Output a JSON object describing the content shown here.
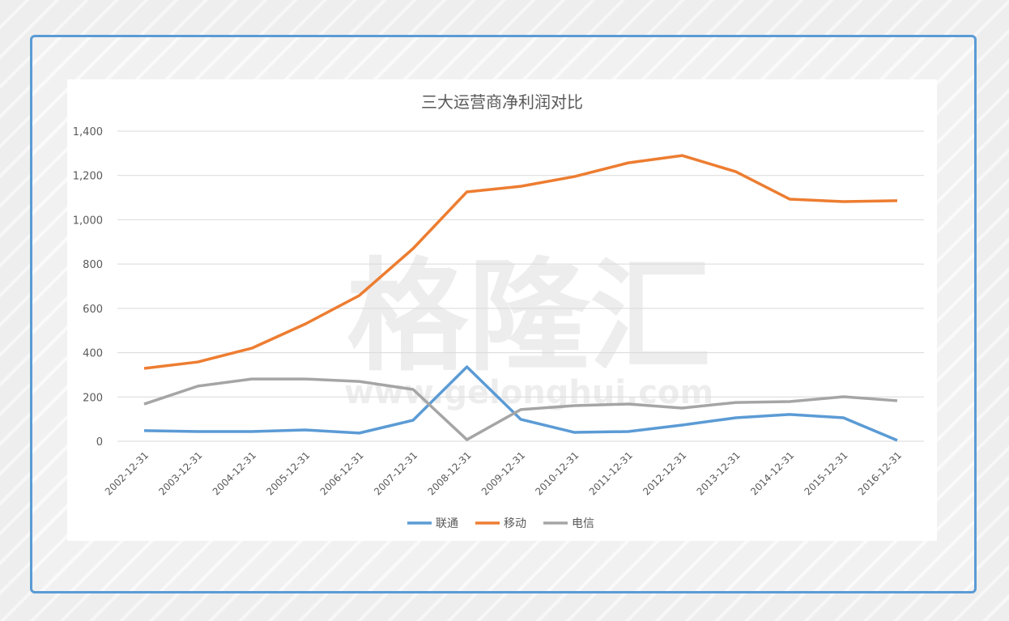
{
  "watermark": {
    "main": "格隆汇",
    "url": "www.gelonghui.com"
  },
  "chart_data": {
    "type": "line",
    "title": "三大运营商净利润对比",
    "xlabel": "",
    "ylabel": "",
    "ylim": [
      0,
      1400
    ],
    "yticks": [
      0,
      200,
      400,
      600,
      800,
      1000,
      1200,
      1400
    ],
    "ytick_labels": [
      "0",
      "200",
      "400",
      "600",
      "800",
      "1,000",
      "1,200",
      "1,400"
    ],
    "grid": true,
    "legend_position": "bottom",
    "categories": [
      "2002-12-31",
      "2003-12-31",
      "2004-12-31",
      "2005-12-31",
      "2006-12-31",
      "2007-12-31",
      "2008-12-31",
      "2009-12-31",
      "2010-12-31",
      "2011-12-31",
      "2012-12-31",
      "2013-12-31",
      "2014-12-31",
      "2015-12-31",
      "2016-12-31"
    ],
    "series": [
      {
        "name": "联通",
        "color": "#5b9bd5",
        "values": [
          48,
          44,
          44,
          51,
          37,
          95,
          336,
          99,
          40,
          44,
          73,
          106,
          121,
          106,
          4
        ]
      },
      {
        "name": "移动",
        "color": "#ed7d31",
        "values": [
          329,
          358,
          420,
          530,
          658,
          870,
          1126,
          1151,
          1195,
          1257,
          1290,
          1217,
          1093,
          1082,
          1086
        ]
      },
      {
        "name": "电信",
        "color": "#a5a5a5",
        "values": [
          168,
          249,
          281,
          281,
          270,
          234,
          7,
          143,
          161,
          168,
          150,
          175,
          179,
          201,
          183
        ]
      }
    ]
  }
}
